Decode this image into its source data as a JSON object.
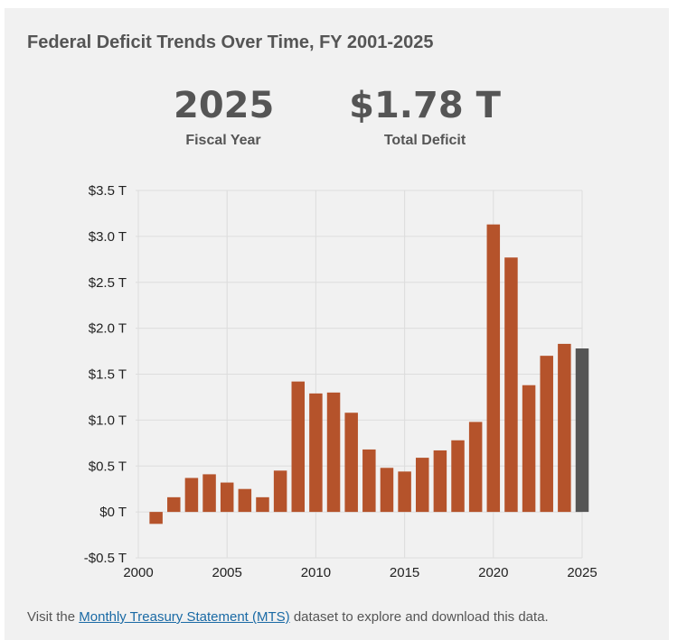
{
  "title": "Federal Deficit Trends Over Time, FY 2001-2025",
  "stats": {
    "year_value": "2025",
    "year_label": "Fiscal Year",
    "deficit_value": "$1.78 T",
    "deficit_label": "Total Deficit"
  },
  "footer": {
    "prefix": "Visit the ",
    "link_text": "Monthly Treasury Statement (MTS)",
    "suffix": " dataset to explore and download this data."
  },
  "colors": {
    "bar": "#b5532b",
    "highlight": "#555555",
    "grid": "#dddddd"
  },
  "chart_data": {
    "type": "bar",
    "title": "Federal Deficit Trends Over Time, FY 2001-2025",
    "xlabel": "",
    "ylabel": "",
    "x": [
      2001,
      2002,
      2003,
      2004,
      2005,
      2006,
      2007,
      2008,
      2009,
      2010,
      2011,
      2012,
      2013,
      2014,
      2015,
      2016,
      2017,
      2018,
      2019,
      2020,
      2021,
      2022,
      2023,
      2024,
      2025
    ],
    "values": [
      -0.13,
      0.16,
      0.37,
      0.41,
      0.32,
      0.25,
      0.16,
      0.45,
      1.42,
      1.29,
      1.3,
      1.08,
      0.68,
      0.48,
      0.44,
      0.59,
      0.67,
      0.78,
      0.98,
      3.13,
      2.77,
      1.38,
      1.7,
      1.83,
      1.78
    ],
    "highlight_year": 2025,
    "ylim": [
      -0.5,
      3.5
    ],
    "xlim": [
      2000,
      2026
    ],
    "y_ticks": [
      -0.5,
      0,
      0.5,
      1.0,
      1.5,
      2.0,
      2.5,
      3.0,
      3.5
    ],
    "y_tick_labels": [
      "-$0.5 T",
      "$0 T",
      "$0.5 T",
      "$1.0 T",
      "$1.5 T",
      "$2.0 T",
      "$2.5 T",
      "$3.0 T",
      "$3.5 T"
    ],
    "x_ticks": [
      2000,
      2005,
      2010,
      2015,
      2020,
      2025
    ],
    "x_tick_labels": [
      "2000",
      "2005",
      "2010",
      "2015",
      "2020",
      "2025"
    ],
    "grid": true
  }
}
